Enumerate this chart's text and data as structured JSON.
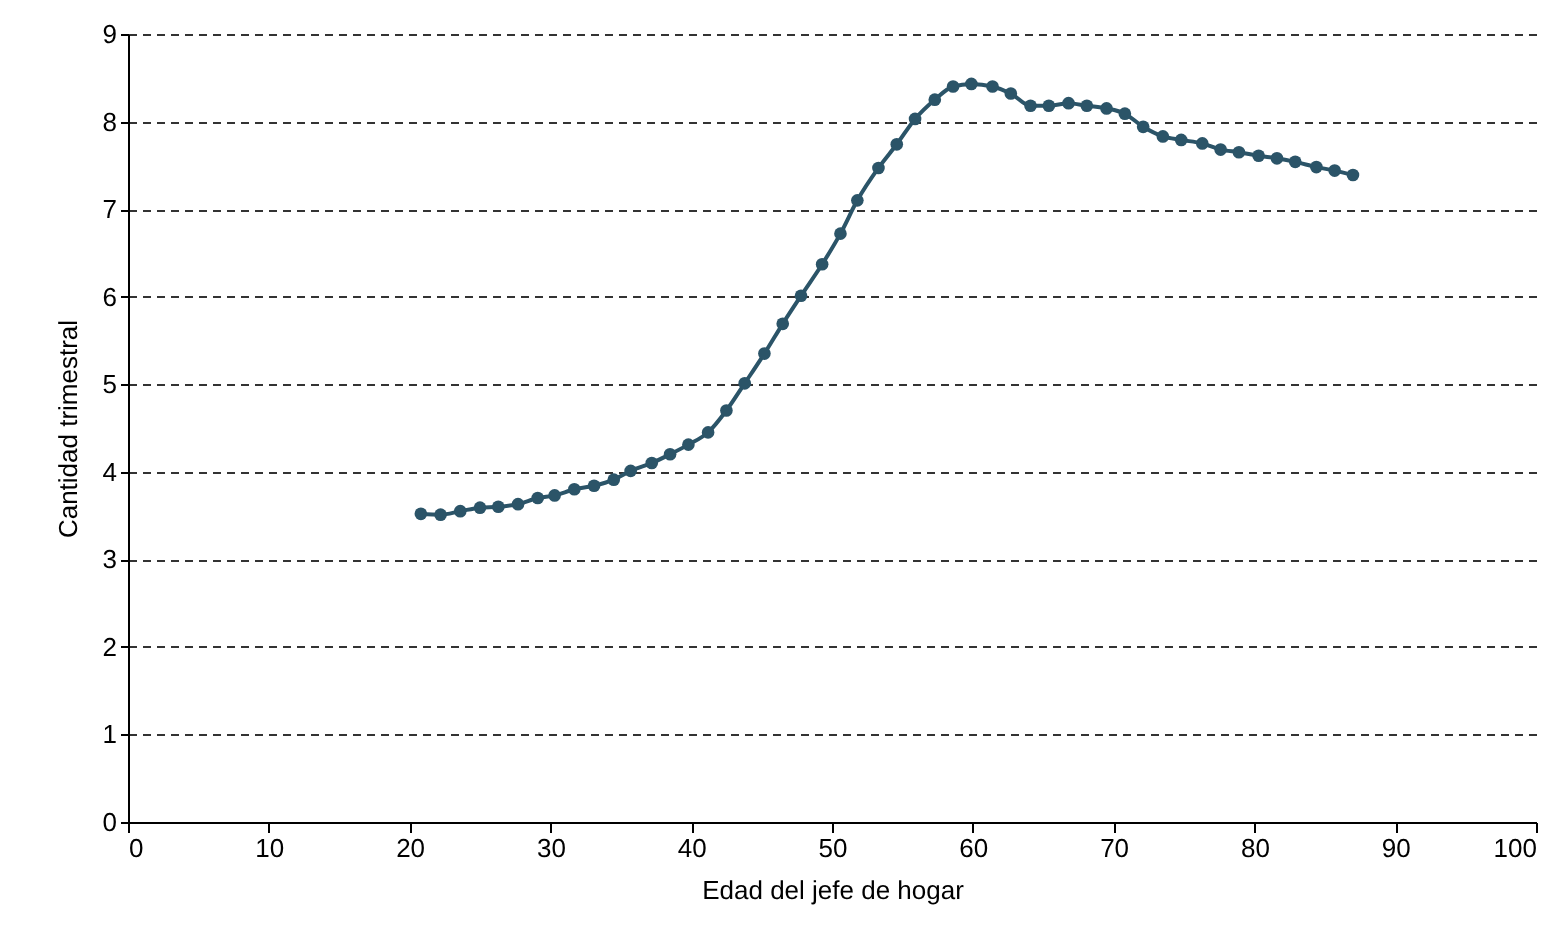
{
  "chart_data": {
    "type": "line",
    "xlabel": "Edad del jefe de hogar",
    "ylabel": "Cantidad trimestral",
    "xlim": [
      0,
      100
    ],
    "xticks": [
      0,
      10,
      20,
      30,
      40,
      50,
      60,
      70,
      80,
      90,
      100
    ],
    "ylim": [
      0,
      9
    ],
    "yticks": [
      0,
      1,
      2,
      3,
      4,
      5,
      6,
      7,
      8,
      9
    ],
    "grid": "y",
    "marker": "circle",
    "line_style": "solid",
    "series": [
      {
        "color": "#2b5468",
        "x": [
          20.8,
          22.2,
          23.6,
          25.0,
          26.3,
          27.7,
          29.1,
          30.3,
          31.7,
          33.1,
          34.5,
          35.7,
          37.2,
          38.5,
          39.8,
          41.2,
          42.5,
          43.8,
          45.2,
          46.5,
          47.8,
          49.3,
          50.6,
          51.8,
          53.3,
          54.6,
          55.9,
          57.3,
          58.6,
          59.9,
          61.4,
          62.7,
          64.1,
          65.4,
          66.8,
          68.1,
          69.5,
          70.8,
          72.1,
          73.5,
          74.8,
          76.3,
          77.6,
          78.9,
          80.3,
          81.6,
          82.9,
          84.4,
          85.7,
          87.0
        ],
        "values": [
          3.52,
          3.51,
          3.55,
          3.59,
          3.6,
          3.63,
          3.7,
          3.73,
          3.8,
          3.84,
          3.91,
          4.01,
          4.1,
          4.2,
          4.31,
          4.45,
          4.7,
          5.01,
          5.35,
          5.69,
          6.01,
          6.37,
          6.72,
          7.1,
          7.47,
          7.74,
          8.03,
          8.25,
          8.4,
          8.43,
          8.4,
          8.32,
          8.18,
          8.18,
          8.21,
          8.18,
          8.15,
          8.09,
          7.94,
          7.83,
          7.79,
          7.75,
          7.68,
          7.65,
          7.61,
          7.58,
          7.54,
          7.48,
          7.44,
          7.39
        ]
      }
    ]
  }
}
